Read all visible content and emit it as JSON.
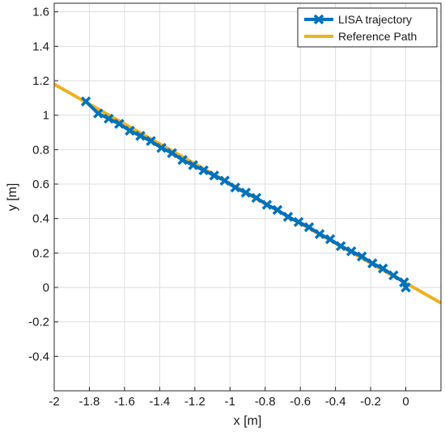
{
  "chart_data": {
    "type": "line",
    "xlabel": "x [m]",
    "ylabel": "y [m]",
    "xlim": [
      -2,
      0.2
    ],
    "ylim": [
      -0.6,
      1.65
    ],
    "xticks": [
      -2,
      -1.8,
      -1.6,
      -1.4,
      -1.2,
      -1,
      -0.8,
      -0.6,
      -0.4,
      -0.2,
      0
    ],
    "xtick_labels": [
      "-2",
      "-1.8",
      "-1.6",
      "-1.4",
      "-1.2",
      "-1",
      "-0.8",
      "-0.6",
      "-0.4",
      "-0.2",
      "0"
    ],
    "yticks": [
      -0.4,
      -0.2,
      0,
      0.2,
      0.4,
      0.6,
      0.8,
      1,
      1.2,
      1.4,
      1.6
    ],
    "ytick_labels": [
      "-0.4",
      "-0.2",
      "0",
      "0.2",
      "0.4",
      "0.6",
      "0.8",
      "1",
      "1.2",
      "1.4",
      "1.6"
    ],
    "grid": true,
    "legend_position": "top-right",
    "series": [
      {
        "name": "Reference Path",
        "color": "#EDB120",
        "marker": "none",
        "x": [
          -2,
          0.2
        ],
        "y": [
          1.18,
          -0.09
        ]
      },
      {
        "name": "LISA trajectory",
        "color": "#0072BD",
        "marker": "x",
        "x": [
          0,
          -0.01,
          -0.07,
          -0.13,
          -0.19,
          -0.25,
          -0.31,
          -0.37,
          -0.43,
          -0.49,
          -0.55,
          -0.61,
          -0.67,
          -0.73,
          -0.79,
          -0.85,
          -0.91,
          -0.97,
          -1.03,
          -1.09,
          -1.15,
          -1.21,
          -1.27,
          -1.33,
          -1.39,
          -1.45,
          -1.51,
          -1.57,
          -1.63,
          -1.69,
          -1.75,
          -1.82
        ],
        "y": [
          0,
          0.03,
          0.07,
          0.11,
          0.14,
          0.18,
          0.21,
          0.24,
          0.28,
          0.31,
          0.35,
          0.38,
          0.41,
          0.45,
          0.48,
          0.52,
          0.55,
          0.58,
          0.62,
          0.65,
          0.68,
          0.71,
          0.74,
          0.78,
          0.81,
          0.85,
          0.88,
          0.91,
          0.95,
          0.98,
          1.01,
          1.08
        ]
      }
    ],
    "legend": [
      "LISA trajectory",
      "Reference Path"
    ]
  }
}
